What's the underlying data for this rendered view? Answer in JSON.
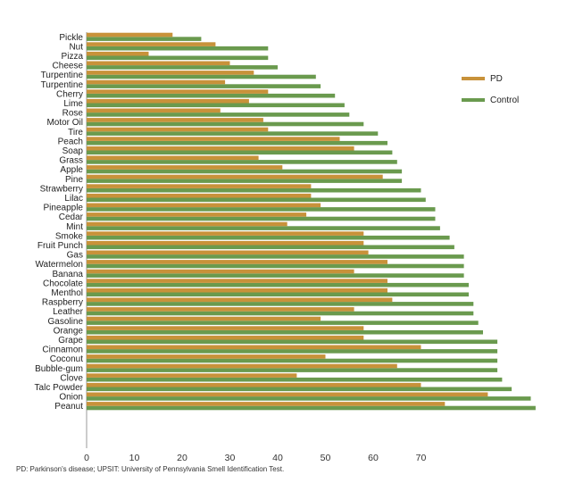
{
  "chart_data": {
    "type": "bar",
    "orientation": "horizontal",
    "categories": [
      "Pickle",
      "Nut",
      "Pizza",
      "Cheese",
      "Turpentine",
      "Turpentine",
      "Cherry",
      "Lime",
      "Rose",
      "Motor Oil",
      "Tire",
      "Peach",
      "Soap",
      "Grass",
      "Apple",
      "Pine",
      "Strawberry",
      "Lilac",
      "Pineapple",
      "Cedar",
      "Mint",
      "Smoke",
      "Fruit Punch",
      "Gas",
      "Watermelon",
      "Banana",
      "Chocolate",
      "Menthol",
      "Raspberry",
      "Leather",
      "Gasoline",
      "Orange",
      "Grape",
      "Cinnamon",
      "Coconut",
      "Bubble-gum",
      "Clove",
      "Talc Powder",
      "Onion",
      "Peanut"
    ],
    "series": [
      {
        "name": "PD",
        "color": "#c8923a",
        "values": [
          18,
          27,
          13,
          30,
          35,
          29,
          38,
          34,
          28,
          37,
          38,
          53,
          56,
          36,
          41,
          62,
          47,
          47,
          49,
          46,
          42,
          58,
          58,
          59,
          63,
          56,
          63,
          63,
          64,
          56,
          49,
          58,
          58,
          70,
          50,
          65,
          44,
          70,
          84,
          75
        ]
      },
      {
        "name": "Control",
        "color": "#6a9a4e",
        "values": [
          24,
          38,
          38,
          40,
          48,
          49,
          52,
          54,
          55,
          58,
          61,
          63,
          64,
          65,
          66,
          66,
          70,
          71,
          73,
          73,
          74,
          76,
          77,
          79,
          79,
          79,
          80,
          80,
          81,
          81,
          82,
          83,
          86,
          86,
          86,
          86,
          87,
          89,
          93,
          94
        ]
      }
    ],
    "xlim": [
      0,
      94
    ],
    "xticks": [
      0,
      10,
      20,
      30,
      40,
      50,
      60,
      70
    ],
    "grid": false,
    "legend": "right"
  },
  "footnote": "PD: Parkinson's disease; UPSIT: University of Pennsylvania Smell Identification Test."
}
